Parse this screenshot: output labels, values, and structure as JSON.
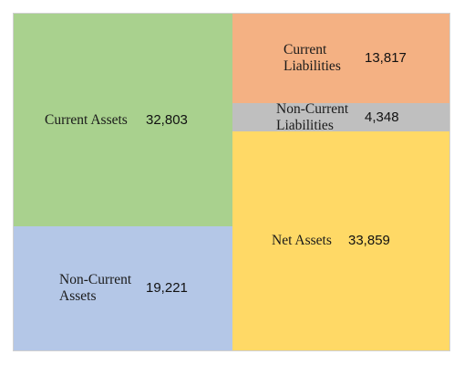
{
  "chart_data": {
    "type": "treemap",
    "title": "",
    "unit": "",
    "sides": [
      {
        "name": "",
        "blocks": [
          {
            "id": "current-assets",
            "label": "Current Assets",
            "value": 32803,
            "display": "32,803",
            "color": "#a9d18e"
          },
          {
            "id": "non-current-assets",
            "label": "Non-Current\nAssets",
            "value": 19221,
            "display": "19,221",
            "color": "#b4c7e7"
          }
        ]
      },
      {
        "name": "",
        "blocks": [
          {
            "id": "current-liabilities",
            "label": "Current\nLiabilities",
            "value": 13817,
            "display": "13,817",
            "color": "#f4b183"
          },
          {
            "id": "non-current-liabilities",
            "label": "Non-Current\nLiabilities",
            "value": 4348,
            "display": "4,348",
            "color": "#bfbfbf"
          },
          {
            "id": "net-assets",
            "label": "Net Assets",
            "value": 33859,
            "display": "33,859",
            "color": "#ffd966"
          }
        ]
      }
    ]
  }
}
